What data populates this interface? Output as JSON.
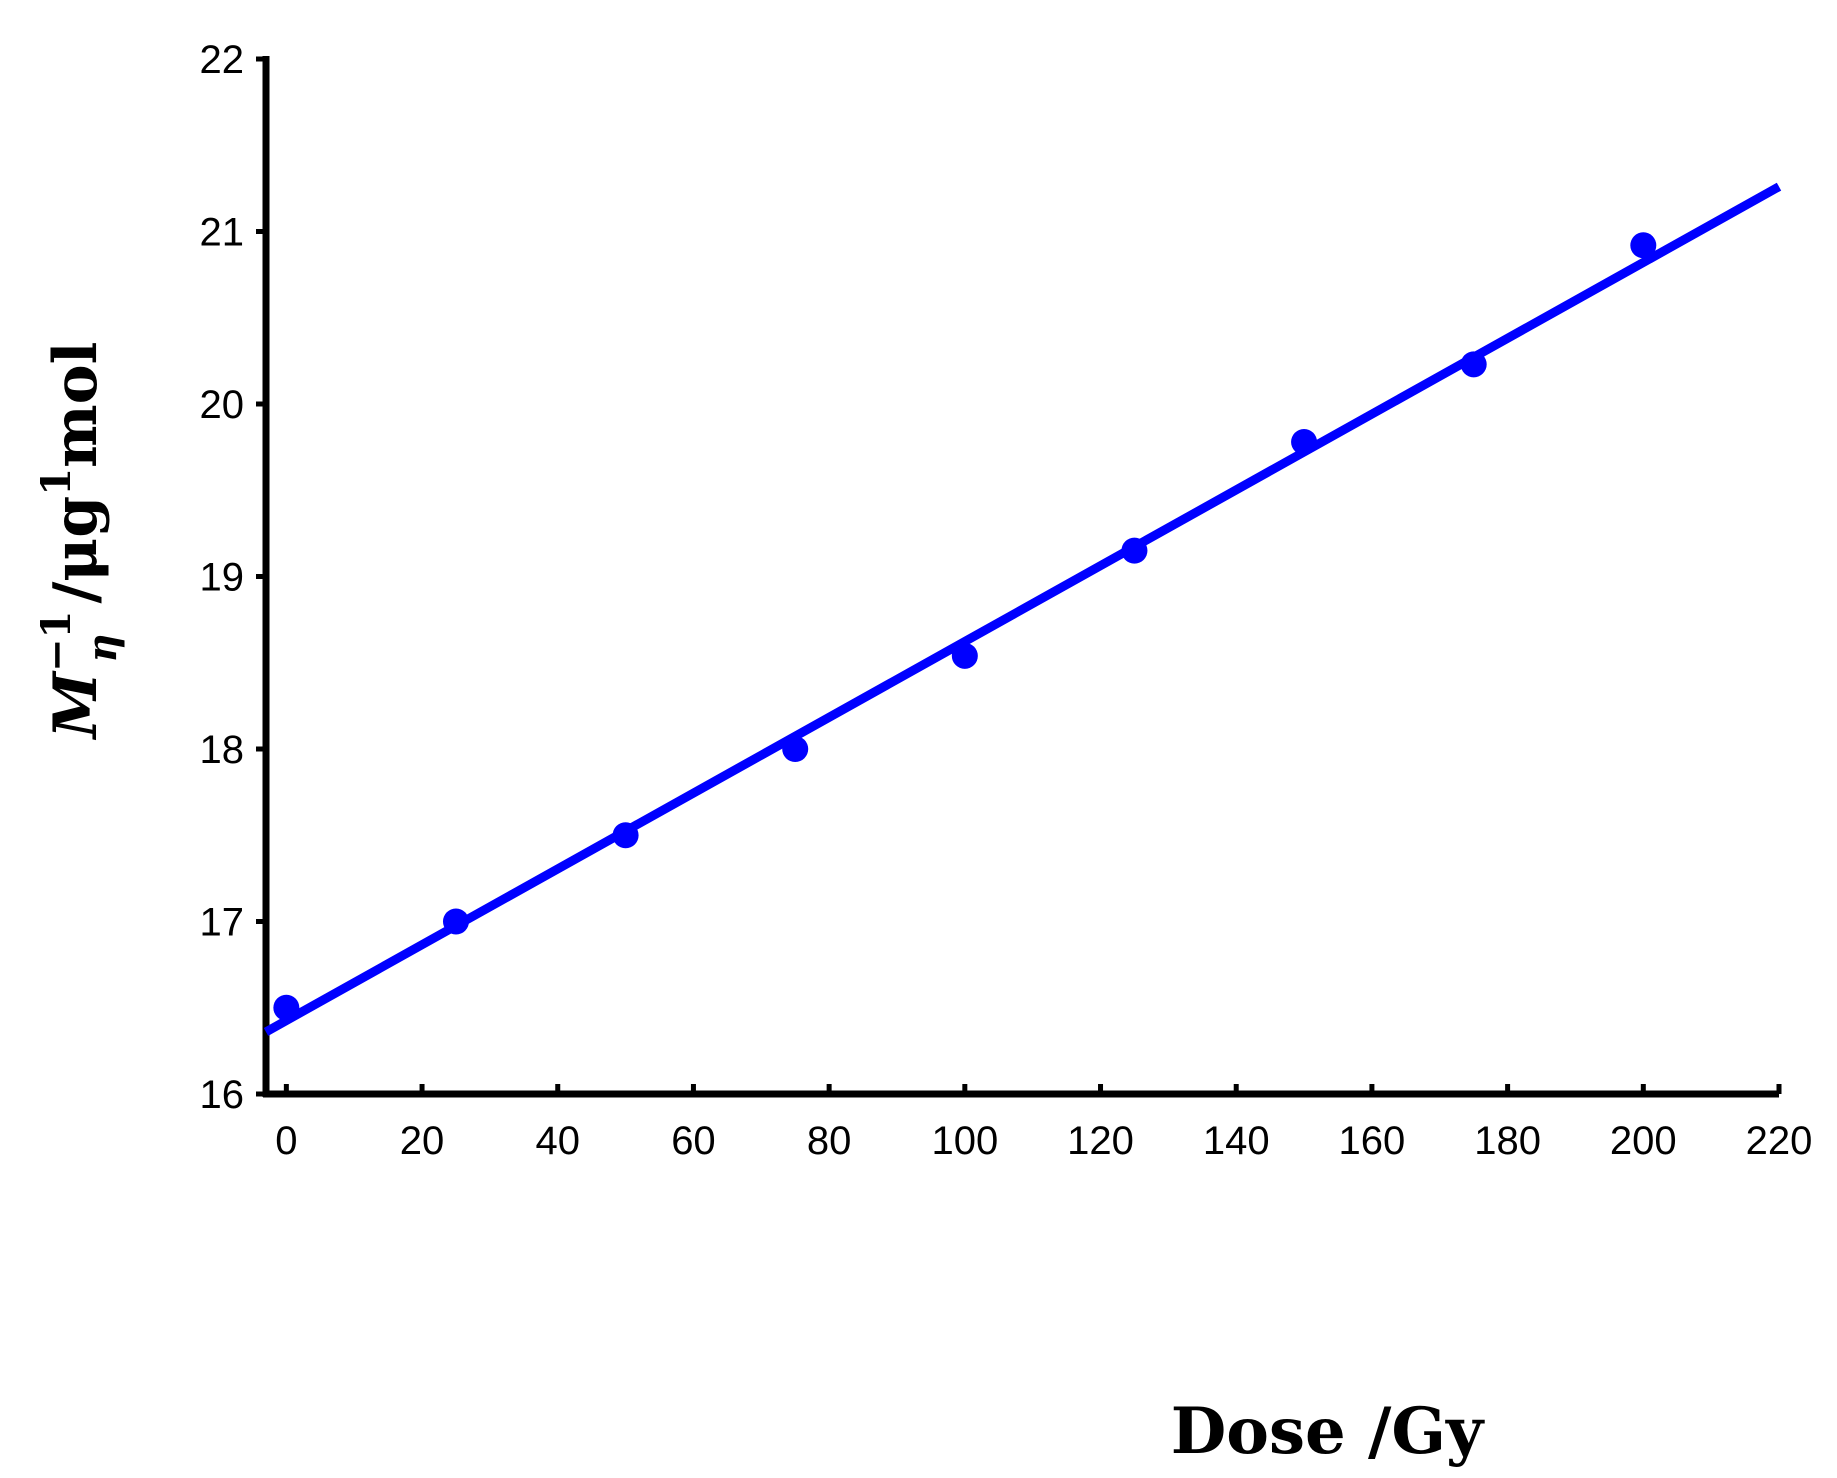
{
  "chart_data": {
    "type": "scatter",
    "title": "",
    "xlabel": "Dose /Gy",
    "ylabel": {
      "base": "M",
      "subscript": "η",
      "superscript": "−1",
      "unit_prefix": "/μg",
      "unit_superscript": "1",
      "unit_suffix": "mol"
    },
    "xlim": [
      -3,
      220
    ],
    "ylim": [
      16,
      22
    ],
    "x_ticks": [
      0,
      20,
      40,
      60,
      80,
      100,
      120,
      140,
      160,
      180,
      200,
      220
    ],
    "y_ticks": [
      16,
      17,
      18,
      19,
      20,
      21,
      22
    ],
    "grid": false,
    "legend": "none",
    "series": [
      {
        "marker": "circle",
        "color": "#0000ff",
        "x": [
          0,
          25,
          50,
          75,
          100,
          125,
          150,
          175,
          200
        ],
        "y": [
          16.5,
          17.0,
          17.5,
          18.0,
          18.54,
          19.15,
          19.78,
          20.23,
          20.92
        ]
      }
    ],
    "fit_line": {
      "color": "#0000ff",
      "x": [
        -3,
        220
      ],
      "y": [
        16.36,
        21.26
      ]
    }
  }
}
